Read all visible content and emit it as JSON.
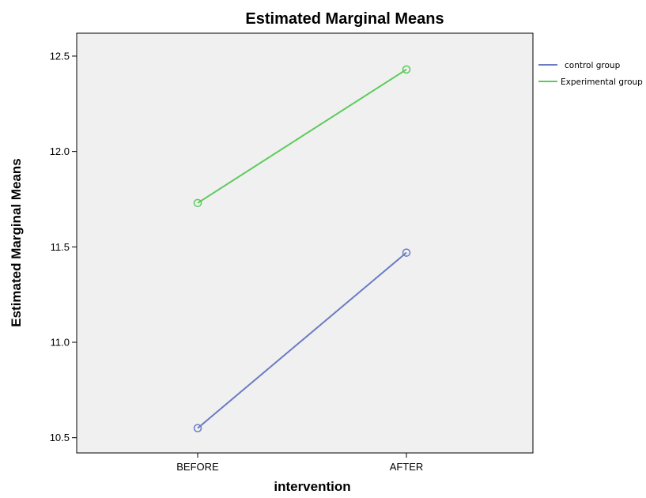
{
  "chart_data": {
    "type": "line",
    "title": "Estimated Marginal Means",
    "xlabel": "intervention",
    "ylabel": "Estimated Marginal Means",
    "categories": [
      "BEFORE",
      "AFTER"
    ],
    "ylim": [
      10.42,
      12.62
    ],
    "yticks": [
      "10.5",
      "11.0",
      "11.5",
      "12.0",
      "12.5"
    ],
    "grid": false,
    "legend_position": "right",
    "series": [
      {
        "name": "control group",
        "values": [
          10.55,
          11.47
        ],
        "color": "#6a7cc4"
      },
      {
        "name": "Experimental group",
        "values": [
          11.73,
          12.43
        ],
        "color": "#5ccb5c"
      }
    ]
  }
}
